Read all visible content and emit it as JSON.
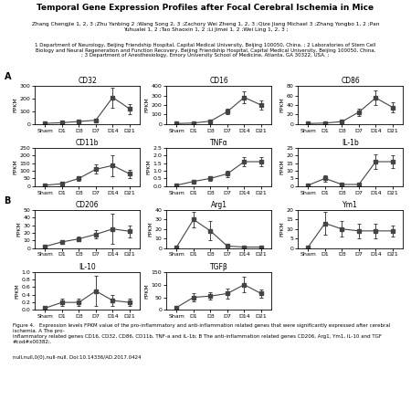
{
  "title": "Temporal Gene Expression Profiles after Focal Cerebral Ischemia in Mice",
  "annotations": [
    "Zhang Chengjie 1, 2, 3 ;Zhu Yanbing 2 ;Wang Song 2, 3 ;Zachory Wei Zheng 1, 2, 3 ;Qize Jiang Michael 3 ;Zhang Yongbo 1, 2 ;Pan\nYuhualei 1, 2 ;Tao Shaoxin 1, 2 ;Li Jimei 1, 2 ;Wei Ling 1, 2, 3 ;",
    "1 Department of Neurology, Beijing Friendship Hospital, Capital Medical University, Beijing 100050, China. ; 2 Laboratories of Stem Cell\nBiology and Neural Regeneration and Function Recovery, Beijing Friendship Hospital, Capital Medical University, Beijing 100050, China.\n; 3 Department of Anesthesiology, Emory University School of Medicine, Atlanta, GA 30322, USA. ;",
    "Figure 4.   Expression levels FPKM value of the pro-inflammatory and anti-inflammation related genes that were significantly expressed after cerebral ischemia. A The pro-\ninflammatory related genes CD16, CD32, CD86, CD11b, TNF-a and IL-1b; B The anti-inflammation related genes CD206, Arg1, Ym1, IL-10 and TGF #cod#x00382;.",
    "null,null,0(0),null-null. Doi:10.14336/AD.2017.0424"
  ],
  "chart_data": [
    {
      "type": "line",
      "title": "CD32",
      "annotations": [
        "A"
      ],
      "y_label": "FPKM",
      "categories": [
        "Sham",
        "D1",
        "D3",
        "D7",
        "D14",
        "D21"
      ],
      "values": [
        5,
        10,
        20,
        30,
        210,
        120
      ],
      "errors": [
        2,
        5,
        8,
        10,
        80,
        40
      ],
      "color": "#444444",
      "marker": "square",
      "line_style": "solid",
      "ylim": [
        0,
        300
      ],
      "yticks": [
        0,
        100,
        200,
        300
      ]
    },
    {
      "type": "line",
      "title": "CD16",
      "y_label": "FPKM",
      "categories": [
        "Sham",
        "D1",
        "D3",
        "D7",
        "D14",
        "D21"
      ],
      "values": [
        5,
        10,
        30,
        130,
        280,
        200
      ],
      "errors": [
        2,
        5,
        10,
        30,
        60,
        50
      ],
      "color": "#444444",
      "marker": "square",
      "line_style": "solid",
      "ylim": [
        0,
        400
      ],
      "yticks": [
        0,
        100,
        200,
        300,
        400
      ]
    },
    {
      "type": "line",
      "title": "CD86",
      "y_label": "FPKM",
      "categories": [
        "Sham",
        "D1",
        "D3",
        "D7",
        "D14",
        "D21"
      ],
      "values": [
        1,
        2,
        5,
        25,
        55,
        35
      ],
      "errors": [
        0.5,
        1,
        2,
        8,
        15,
        10
      ],
      "color": "#444444",
      "marker": "square",
      "line_style": "solid",
      "ylim": [
        0,
        80
      ],
      "yticks": [
        0,
        20,
        40,
        60,
        80
      ]
    },
    {
      "type": "line",
      "title": "CD11b",
      "y_label": "FPKM",
      "categories": [
        "Sham",
        "D1",
        "D3",
        "D7",
        "D14",
        "D21"
      ],
      "values": [
        5,
        15,
        50,
        110,
        135,
        80
      ],
      "errors": [
        2,
        5,
        15,
        30,
        70,
        25
      ],
      "color": "#444444",
      "marker": "square",
      "line_style": "solid",
      "ylim": [
        0,
        250
      ],
      "yticks": [
        0,
        50,
        100,
        150,
        200,
        250
      ]
    },
    {
      "type": "line",
      "title": "TNFα",
      "y_label": "FPKM",
      "categories": [
        "Sham",
        "D1",
        "D3",
        "D7",
        "D14",
        "D21"
      ],
      "values": [
        0.05,
        0.3,
        0.5,
        0.8,
        1.6,
        1.6
      ],
      "errors": [
        0.02,
        0.1,
        0.15,
        0.2,
        0.3,
        0.3
      ],
      "color": "#444444",
      "marker": "square",
      "line_style": "solid",
      "ylim": [
        0,
        2.5
      ],
      "yticks": [
        0.0,
        0.5,
        1.0,
        1.5,
        2.0,
        2.5
      ]
    },
    {
      "type": "line",
      "title": "IL-1b",
      "y_label": "FPKM",
      "categories": [
        "Sham",
        "D1",
        "D3",
        "D7",
        "D14",
        "D21"
      ],
      "values": [
        0.5,
        5,
        1,
        1,
        16,
        16
      ],
      "errors": [
        0.2,
        2,
        0.5,
        0.5,
        5,
        4
      ],
      "color": "#444444",
      "marker": "square",
      "line_style": "solid",
      "ylim": [
        0,
        25
      ],
      "yticks": [
        0,
        5,
        10,
        15,
        20,
        25
      ]
    },
    {
      "type": "line",
      "title": "CD206",
      "annotations": [
        "B"
      ],
      "y_label": "FPKM",
      "categories": [
        "Sham",
        "D1",
        "D3",
        "D7",
        "D14",
        "D21"
      ],
      "values": [
        2,
        8,
        12,
        18,
        25,
        22
      ],
      "errors": [
        1,
        2,
        3,
        5,
        20,
        8
      ],
      "color": "#444444",
      "marker": "square",
      "line_style": "solid",
      "ylim": [
        0,
        50
      ],
      "yticks": [
        0,
        10,
        20,
        30,
        40,
        50
      ]
    },
    {
      "type": "line",
      "title": "Arg1",
      "y_label": "FPKM",
      "categories": [
        "Sham",
        "D1",
        "D3",
        "D7",
        "D14",
        "D21"
      ],
      "values": [
        1,
        30,
        18,
        2,
        1,
        1
      ],
      "errors": [
        0.5,
        8,
        10,
        1,
        0.5,
        0.5
      ],
      "color": "#444444",
      "marker": "square",
      "line_style": "solid",
      "ylim": [
        0,
        40
      ],
      "yticks": [
        0,
        10,
        20,
        30,
        40
      ]
    },
    {
      "type": "line",
      "title": "Ym1",
      "y_label": "FPKM",
      "categories": [
        "Sham",
        "D1",
        "D3",
        "D7",
        "D14",
        "D21"
      ],
      "values": [
        0.5,
        13,
        10,
        9,
        9,
        9
      ],
      "errors": [
        0.2,
        6,
        4,
        4,
        4,
        3
      ],
      "color": "#444444",
      "marker": "square",
      "line_style": "solid",
      "ylim": [
        0,
        20
      ],
      "yticks": [
        0,
        5,
        10,
        15,
        20
      ]
    },
    {
      "type": "line",
      "title": "IL-10",
      "y_label": "FPKM",
      "categories": [
        "Sham",
        "D1",
        "D3",
        "D7",
        "D14",
        "D21"
      ],
      "values": [
        0.05,
        0.2,
        0.2,
        0.5,
        0.25,
        0.2
      ],
      "errors": [
        0.02,
        0.1,
        0.1,
        0.4,
        0.15,
        0.1
      ],
      "color": "#444444",
      "marker": "square",
      "line_style": "solid",
      "ylim": [
        0,
        1.0
      ],
      "yticks": [
        0.0,
        0.2,
        0.4,
        0.6,
        0.8,
        1.0
      ]
    },
    {
      "type": "line",
      "title": "TGFβ",
      "y_label": "FPKM",
      "categories": [
        "Sham",
        "D1",
        "D3",
        "D7",
        "D14",
        "D21"
      ],
      "values": [
        10,
        50,
        55,
        65,
        100,
        65
      ],
      "errors": [
        5,
        15,
        15,
        20,
        30,
        15
      ],
      "color": "#444444",
      "marker": "square",
      "line_style": "solid",
      "ylim": [
        0,
        150
      ],
      "yticks": [
        0,
        50,
        100,
        150
      ]
    }
  ]
}
